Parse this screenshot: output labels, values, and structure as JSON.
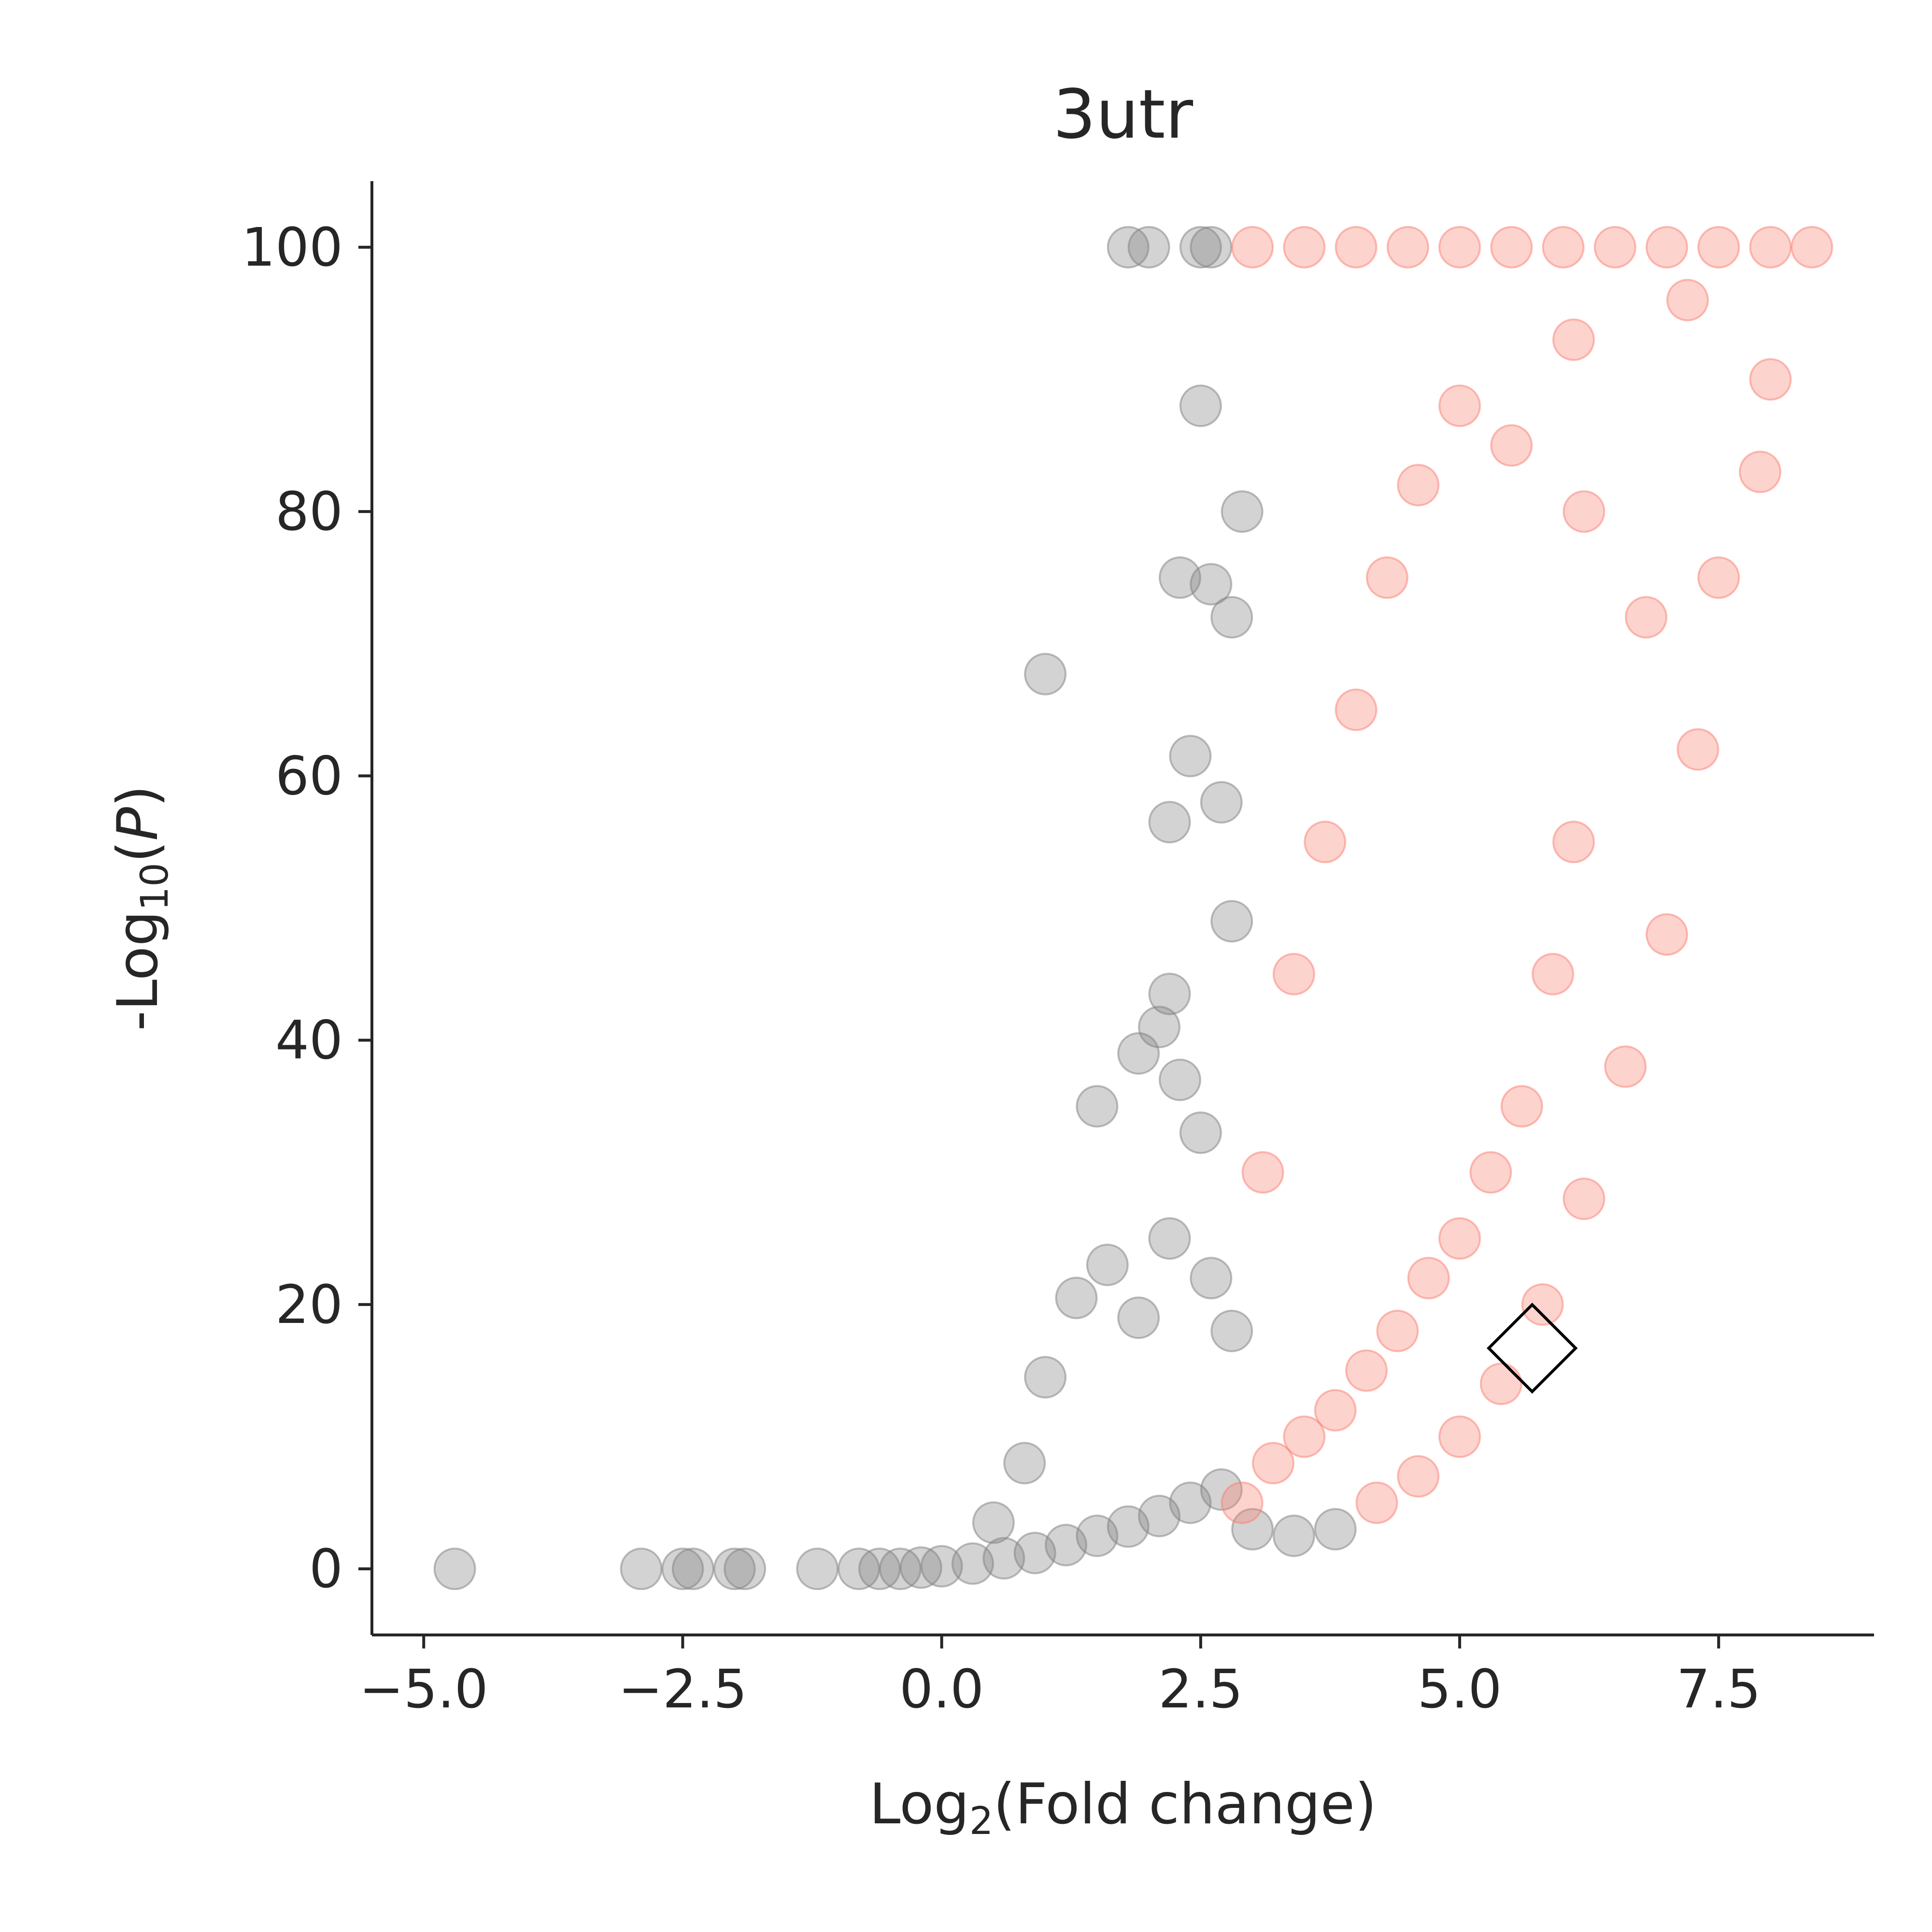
{
  "chart_data": {
    "type": "scatter",
    "title": "3utr",
    "xlabel": {
      "prefix": "Log",
      "sub": "2",
      "suffix": "(Fold change)"
    },
    "ylabel": {
      "prefix": "-Log",
      "sub": "10",
      "mid": "(",
      "italic": "P",
      "suffix": ")"
    },
    "xlim": [
      -5.5,
      9.0
    ],
    "ylim": [
      -5,
      105
    ],
    "xticks": [
      -5.0,
      -2.5,
      0.0,
      2.5,
      5.0,
      7.5
    ],
    "xtick_labels": [
      "−5.0",
      "−2.5",
      "0.0",
      "2.5",
      "5.0",
      "7.5"
    ],
    "yticks": [
      0,
      20,
      40,
      60,
      80,
      100
    ],
    "ytick_labels": [
      "0",
      "20",
      "40",
      "60",
      "80",
      "100"
    ],
    "grid": false,
    "legend": "none",
    "series": [
      {
        "color": "#808080",
        "points": [
          [
            -4.7,
            0
          ],
          [
            -2.9,
            0
          ],
          [
            -2.5,
            0
          ],
          [
            -2.4,
            0
          ],
          [
            -2.0,
            0
          ],
          [
            -1.9,
            0
          ],
          [
            -1.2,
            0
          ],
          [
            -0.8,
            0
          ],
          [
            -0.6,
            0
          ],
          [
            -0.4,
            0
          ],
          [
            -0.2,
            0.1
          ],
          [
            0.0,
            0.2
          ],
          [
            0.3,
            0.4
          ],
          [
            0.6,
            0.8
          ],
          [
            0.9,
            1.2
          ],
          [
            1.2,
            1.8
          ],
          [
            1.5,
            2.5
          ],
          [
            1.8,
            3.2
          ],
          [
            2.1,
            4.0
          ],
          [
            2.4,
            5.0
          ],
          [
            2.7,
            6.0
          ],
          [
            3.0,
            3.0
          ],
          [
            3.4,
            2.5
          ],
          [
            3.8,
            3.0
          ],
          [
            0.5,
            3.5
          ],
          [
            0.8,
            8.0
          ],
          [
            1.0,
            14.5
          ],
          [
            1.3,
            20.5
          ],
          [
            1.6,
            23.0
          ],
          [
            1.9,
            19.0
          ],
          [
            2.2,
            25.0
          ],
          [
            2.6,
            22.0
          ],
          [
            2.8,
            18.0
          ],
          [
            1.5,
            35.0
          ],
          [
            1.9,
            39.0
          ],
          [
            2.1,
            41.0
          ],
          [
            2.3,
            37.0
          ],
          [
            2.5,
            33.0
          ],
          [
            2.2,
            43.5
          ],
          [
            1.0,
            67.7
          ],
          [
            2.2,
            56.5
          ],
          [
            2.4,
            61.5
          ],
          [
            2.7,
            58.0
          ],
          [
            2.8,
            49.0
          ],
          [
            2.3,
            75.0
          ],
          [
            2.6,
            74.5
          ],
          [
            2.8,
            72.0
          ],
          [
            2.9,
            80.0
          ],
          [
            2.5,
            88.0
          ],
          [
            1.8,
            100
          ],
          [
            2.0,
            100
          ],
          [
            2.5,
            100
          ],
          [
            2.6,
            100
          ]
        ]
      },
      {
        "color": "#FA8072",
        "points": [
          [
            2.9,
            5.0
          ],
          [
            3.2,
            8.0
          ],
          [
            3.5,
            10.0
          ],
          [
            3.8,
            12.0
          ],
          [
            4.1,
            15.0
          ],
          [
            4.4,
            18.0
          ],
          [
            4.7,
            22.0
          ],
          [
            5.0,
            25.0
          ],
          [
            5.3,
            30.0
          ],
          [
            5.6,
            35.0
          ],
          [
            5.9,
            45.0
          ],
          [
            6.1,
            55.0
          ],
          [
            4.2,
            5.0
          ],
          [
            4.6,
            7.0
          ],
          [
            5.0,
            10.0
          ],
          [
            5.4,
            14.0
          ],
          [
            5.8,
            20.0
          ],
          [
            6.2,
            28.0
          ],
          [
            6.6,
            38.0
          ],
          [
            7.0,
            48.0
          ],
          [
            7.3,
            62.0
          ],
          [
            3.1,
            30.0
          ],
          [
            3.4,
            45.0
          ],
          [
            3.7,
            55.0
          ],
          [
            4.0,
            65.0
          ],
          [
            4.3,
            75.0
          ],
          [
            4.6,
            82.0
          ],
          [
            5.0,
            88.0
          ],
          [
            5.5,
            85.0
          ],
          [
            6.2,
            80.0
          ],
          [
            6.8,
            72.0
          ],
          [
            7.5,
            75.0
          ],
          [
            7.9,
            83.0
          ],
          [
            8.0,
            90.0
          ],
          [
            7.2,
            96.0
          ],
          [
            6.1,
            93.0
          ],
          [
            3.0,
            100
          ],
          [
            3.5,
            100
          ],
          [
            4.0,
            100
          ],
          [
            4.5,
            100
          ],
          [
            5.0,
            100
          ],
          [
            5.5,
            100
          ],
          [
            6.0,
            100
          ],
          [
            6.5,
            100
          ],
          [
            7.0,
            100
          ],
          [
            7.5,
            100
          ],
          [
            8.0,
            100
          ],
          [
            8.4,
            100
          ]
        ]
      }
    ],
    "highlight": {
      "marker": "diamond",
      "x": 5.7,
      "y": 16.7
    }
  }
}
